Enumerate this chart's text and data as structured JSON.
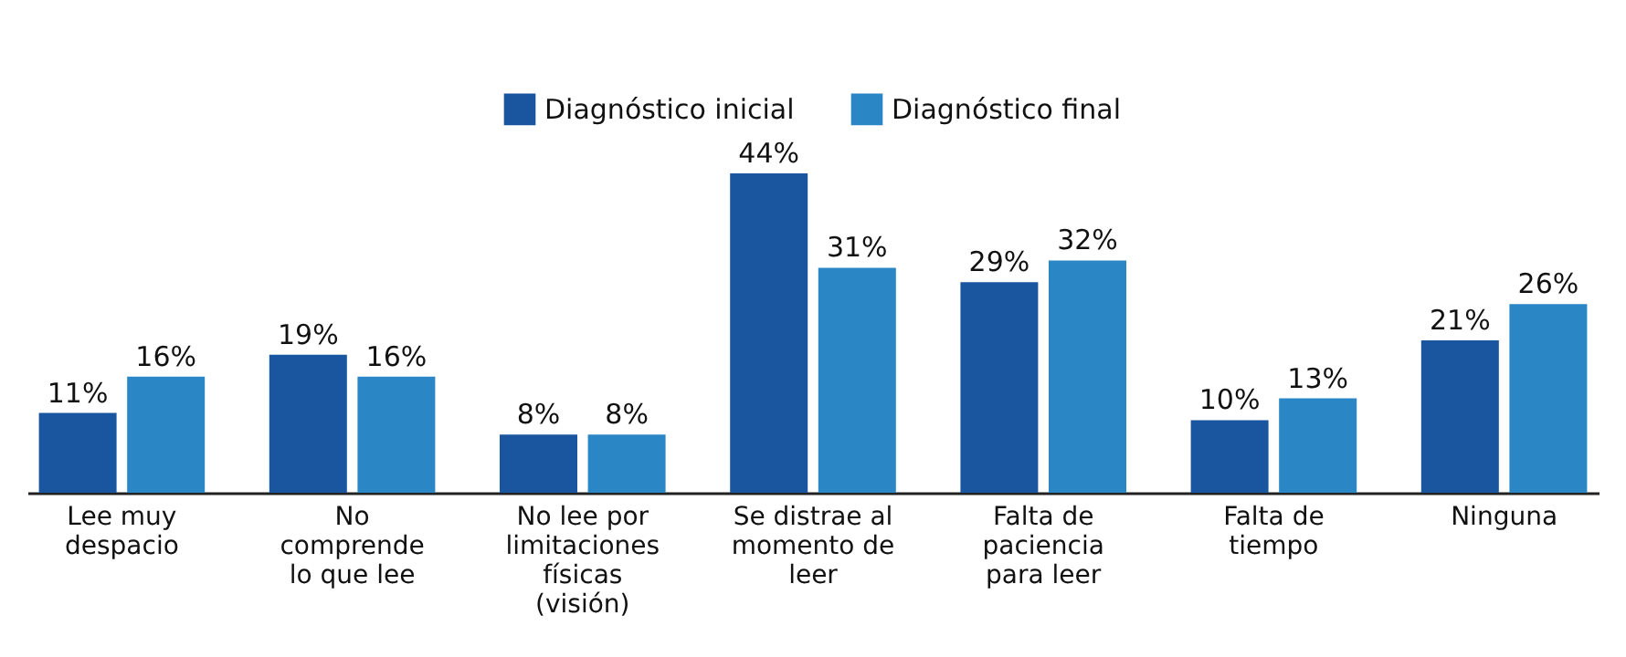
{
  "chart_data": {
    "type": "bar",
    "categories": [
      "Lee muy\ndespacio",
      "No\ncomprende\nlo que lee",
      "No lee por\nlimitaciones\nfísicas\n(visión)",
      "Se distrae al\nmomento de\nleer",
      "Falta de\npaciencia\npara leer",
      "Falta de\ntiempo",
      "Ninguna"
    ],
    "series": [
      {
        "name": "Diagnóstico inicial",
        "color": "#1a55a0",
        "values": [
          11,
          19,
          8,
          44,
          29,
          10,
          21
        ],
        "value_labels": [
          "11%",
          "19%",
          "8%",
          "44%",
          "29%",
          "10%",
          "21%"
        ]
      },
      {
        "name": "Diagnóstico final",
        "color": "#2a86c5",
        "values": [
          16,
          16,
          8,
          31,
          32,
          13,
          26
        ],
        "value_labels": [
          "16%",
          "16%",
          "8%",
          "31%",
          "32%",
          "13%",
          "26%"
        ]
      }
    ],
    "legend": "top",
    "grid": false
  }
}
